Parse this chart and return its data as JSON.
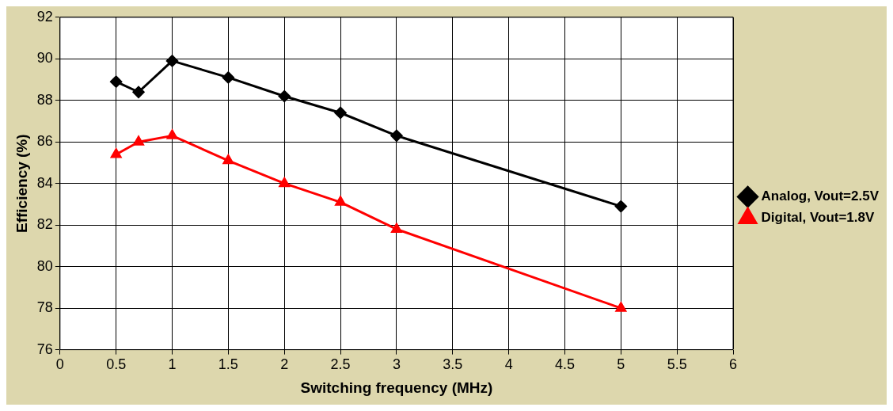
{
  "chart_data": {
    "type": "line",
    "xlabel": "Switching frequency (MHz)",
    "ylabel": "Efficiency (%)",
    "x": [
      0.5,
      0.7,
      1,
      1.5,
      2,
      2.5,
      3,
      5
    ],
    "series": [
      {
        "name": "Analog, Vout=2.5V",
        "color": "#000000",
        "marker": "diamond",
        "values": [
          88.9,
          88.4,
          89.9,
          89.1,
          88.2,
          87.4,
          86.3,
          82.9
        ]
      },
      {
        "name": "Digital, Vout=1.8V",
        "color": "#ff0000",
        "marker": "triangle",
        "values": [
          85.4,
          86.0,
          86.3,
          85.1,
          84.0,
          83.1,
          81.8,
          78.0
        ]
      }
    ],
    "xlim": [
      0,
      6
    ],
    "xticks": [
      0,
      0.5,
      1,
      1.5,
      2,
      2.5,
      3,
      3.5,
      4,
      4.5,
      5,
      5.5,
      6
    ],
    "ylim": [
      76,
      92
    ],
    "yticks": [
      76,
      78,
      80,
      82,
      84,
      86,
      88,
      90,
      92
    ],
    "grid": true,
    "legend": "right",
    "line_style": "solid"
  }
}
